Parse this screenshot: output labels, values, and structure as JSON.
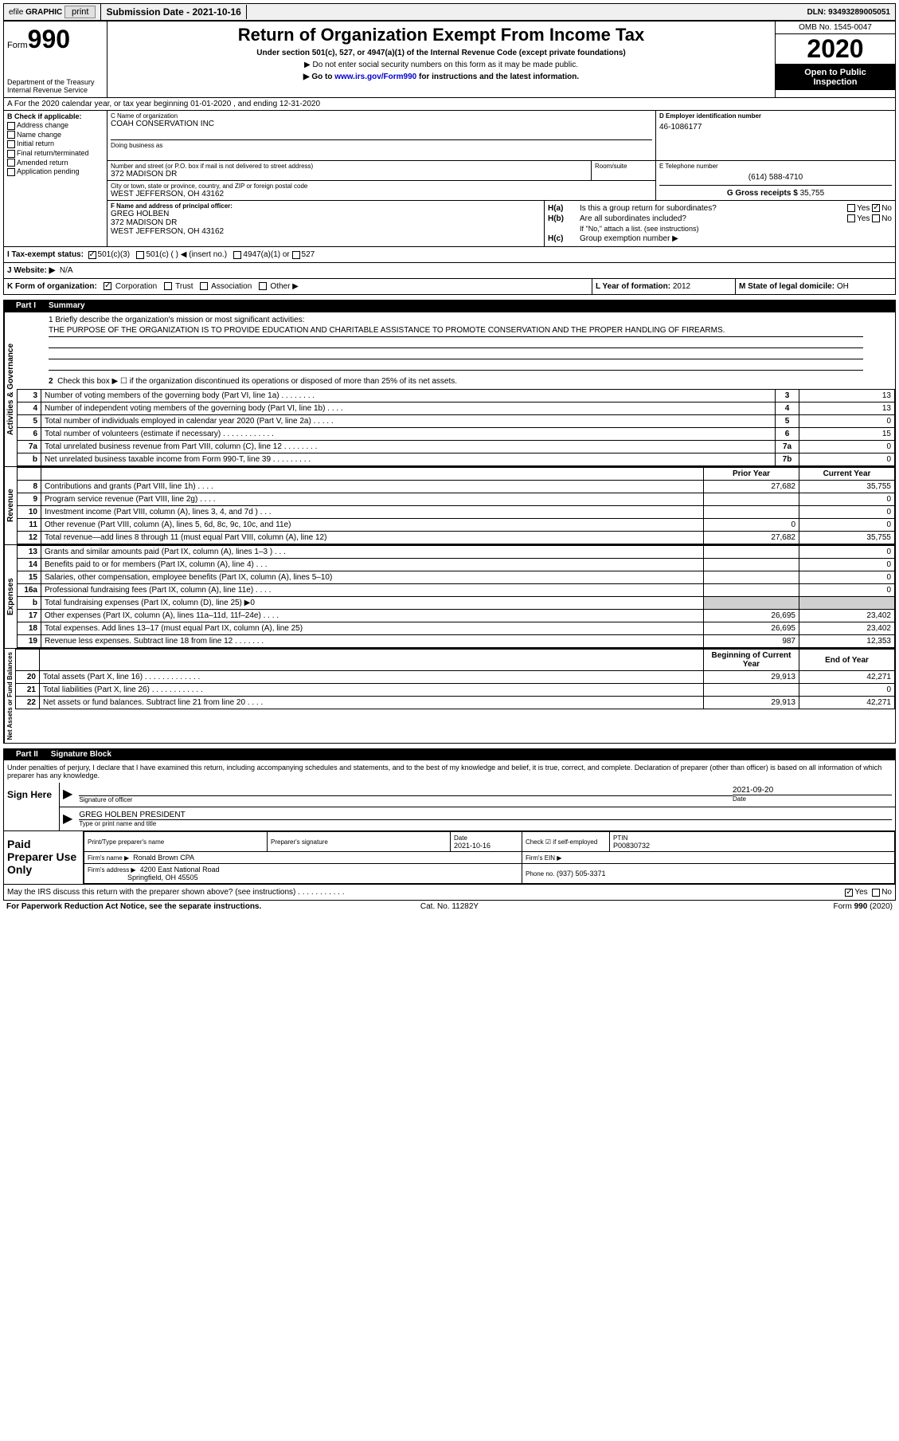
{
  "topbar": {
    "efile_prefix": "efile",
    "efile_graphic": "GRAPHIC",
    "print": "print",
    "submission_label": "Submission Date - 2021-10-16",
    "dln": "DLN: 93493289005051"
  },
  "header": {
    "form_word": "Form",
    "form_num": "990",
    "dept1": "Department of the Treasury",
    "dept2": "Internal Revenue Service",
    "title": "Return of Organization Exempt From Income Tax",
    "sub1": "Under section 501(c), 527, or 4947(a)(1) of the Internal Revenue Code (except private foundations)",
    "sub2": "▶ Do not enter social security numbers on this form as it may be made public.",
    "sub3_pre": "▶ Go to ",
    "sub3_link": "www.irs.gov/Form990",
    "sub3_post": " for instructions and the latest information.",
    "omb": "OMB No. 1545-0047",
    "year": "2020",
    "open1": "Open to Public",
    "open2": "Inspection"
  },
  "row_a": "A For the 2020 calendar year, or tax year beginning 01-01-2020    , and ending 12-31-2020",
  "col_b": {
    "header": "B Check if applicable:",
    "opts": [
      "Address change",
      "Name change",
      "Initial return",
      "Final return/terminated",
      "Amended return",
      "Application pending"
    ]
  },
  "name_box": {
    "c_label": "C Name of organization",
    "c_val": "COAH CONSERVATION INC",
    "dba_label": "Doing business as",
    "dba_val": "",
    "d_label": "D Employer identification number",
    "d_val": "46-1086177"
  },
  "addr": {
    "street_label": "Number and street (or P.O. box if mail is not delivered to street address)",
    "street_val": "372 MADISON DR",
    "room_label": "Room/suite",
    "city_label": "City or town, state or province, country, and ZIP or foreign postal code",
    "city_val": "WEST JEFFERSON, OH  43162",
    "e_label": "E Telephone number",
    "e_val": "(614) 588-4710",
    "g_label": "G Gross receipts $",
    "g_val": "35,755"
  },
  "f_box": {
    "label": "F  Name and address of principal officer:",
    "name": "GREG HOLBEN",
    "addr1": "372 MADISON DR",
    "addr2": "WEST JEFFERSON, OH  43162"
  },
  "h_box": {
    "ha_label": "H(a)",
    "ha_text": "Is this a group return for subordinates?",
    "hb_label": "H(b)",
    "hb_text": "Are all subordinates included?",
    "hb_note": "If \"No,\" attach a list. (see instructions)",
    "hc_label": "H(c)",
    "hc_text": "Group exemption number ▶",
    "yes": "Yes",
    "no": "No"
  },
  "tax_exempt": {
    "i_label": "I  Tax-exempt status:",
    "opt1": "501(c)(3)",
    "opt2": "501(c) (  ) ◀ (insert no.)",
    "opt3": "4947(a)(1) or",
    "opt4": "527"
  },
  "website": {
    "j_label": "J  Website: ▶",
    "val": "N/A"
  },
  "kml": {
    "k_label": "K Form of organization:",
    "k_opts": [
      "Corporation",
      "Trust",
      "Association",
      "Other ▶"
    ],
    "l_label": "L Year of formation:",
    "l_val": "2012",
    "m_label": "M State of legal domicile:",
    "m_val": "OH"
  },
  "part1": {
    "header_num": "Part I",
    "header_title": "Summary",
    "q1_label": "1  Briefly describe the organization's mission or most significant activities:",
    "q1_val": "THE PURPOSE OF THE ORGANIZATION IS TO PROVIDE EDUCATION AND CHARITABLE ASSISTANCE TO PROMOTE CONSERVATION AND THE PROPER HANDLING OF FIREARMS.",
    "q2": "Check this box ▶ ☐  if the organization discontinued its operations or disposed of more than 25% of its net assets.",
    "vlabel_gov": "Activities & Governance",
    "vlabel_rev": "Revenue",
    "vlabel_exp": "Expenses",
    "vlabel_net": "Net Assets or Fund Balances",
    "prior_year": "Prior Year",
    "current_year": "Current Year",
    "beg_year": "Beginning of Current Year",
    "end_year": "End of Year",
    "rows_gov": [
      {
        "n": "3",
        "d": "Number of voting members of the governing body (Part VI, line 1a)  .   .   .   .   .   .   .   .",
        "b": "3",
        "v": "13"
      },
      {
        "n": "4",
        "d": "Number of independent voting members of the governing body (Part VI, line 1b)  .   .   .   .",
        "b": "4",
        "v": "13"
      },
      {
        "n": "5",
        "d": "Total number of individuals employed in calendar year 2020 (Part V, line 2a)  .   .   .   .   .",
        "b": "5",
        "v": "0"
      },
      {
        "n": "6",
        "d": "Total number of volunteers (estimate if necessary)    .    .    .    .    .    .    .    .    .    .    .    .",
        "b": "6",
        "v": "15"
      },
      {
        "n": "7a",
        "d": "Total unrelated business revenue from Part VIII, column (C), line 12  .   .   .   .   .   .   .   .",
        "b": "7a",
        "v": "0"
      },
      {
        "n": "b",
        "d": "Net unrelated business taxable income from Form 990-T, line 39   .   .   .   .   .   .   .   .   .",
        "b": "7b",
        "v": "0"
      }
    ],
    "rows_rev": [
      {
        "n": "8",
        "d": "Contributions and grants (Part VIII, line 1h)   .   .   .   .",
        "p": "27,682",
        "c": "35,755"
      },
      {
        "n": "9",
        "d": "Program service revenue (Part VIII, line 2g)   .   .   .   .",
        "p": "",
        "c": "0"
      },
      {
        "n": "10",
        "d": "Investment income (Part VIII, column (A), lines 3, 4, and 7d )   .   .   .",
        "p": "",
        "c": "0"
      },
      {
        "n": "11",
        "d": "Other revenue (Part VIII, column (A), lines 5, 6d, 8c, 9c, 10c, and 11e)",
        "p": "0",
        "c": "0"
      },
      {
        "n": "12",
        "d": "Total revenue—add lines 8 through 11 (must equal Part VIII, column (A), line 12)",
        "p": "27,682",
        "c": "35,755"
      }
    ],
    "rows_exp": [
      {
        "n": "13",
        "d": "Grants and similar amounts paid (Part IX, column (A), lines 1–3 )  .   .   .",
        "p": "",
        "c": "0"
      },
      {
        "n": "14",
        "d": "Benefits paid to or for members (Part IX, column (A), line 4)   .   .   .",
        "p": "",
        "c": "0"
      },
      {
        "n": "15",
        "d": "Salaries, other compensation, employee benefits (Part IX, column (A), lines 5–10)",
        "p": "",
        "c": "0"
      },
      {
        "n": "16a",
        "d": "Professional fundraising fees (Part IX, column (A), line 11e)   .   .   .   .",
        "p": "",
        "c": "0"
      },
      {
        "n": "b",
        "d": "Total fundraising expenses (Part IX, column (D), line 25) ▶0",
        "p": "grey",
        "c": "grey"
      },
      {
        "n": "17",
        "d": "Other expenses (Part IX, column (A), lines 11a–11d, 11f–24e)   .   .   .   .",
        "p": "26,695",
        "c": "23,402"
      },
      {
        "n": "18",
        "d": "Total expenses. Add lines 13–17 (must equal Part IX, column (A), line 25)",
        "p": "26,695",
        "c": "23,402"
      },
      {
        "n": "19",
        "d": "Revenue less expenses. Subtract line 18 from line 12  .   .   .   .   .   .   .",
        "p": "987",
        "c": "12,353"
      }
    ],
    "rows_net": [
      {
        "n": "20",
        "d": "Total assets (Part X, line 16)  .   .   .   .   .   .   .   .   .   .   .   .   .",
        "p": "29,913",
        "c": "42,271"
      },
      {
        "n": "21",
        "d": "Total liabilities (Part X, line 26)  .   .   .   .   .   .   .   .   .   .   .   .",
        "p": "",
        "c": "0"
      },
      {
        "n": "22",
        "d": "Net assets or fund balances. Subtract line 21 from line 20   .   .   .   .",
        "p": "29,913",
        "c": "42,271"
      }
    ]
  },
  "part2": {
    "header_num": "Part II",
    "header_title": "Signature Block",
    "decl": "Under penalties of perjury, I declare that I have examined this return, including accompanying schedules and statements, and to the best of my knowledge and belief, it is true, correct, and complete. Declaration of preparer (other than officer) is based on all information of which preparer has any knowledge.",
    "sign_here": "Sign Here",
    "sig_officer_label": "Signature of officer",
    "sig_date_label": "Date",
    "sig_date_val": "2021-09-20",
    "sig_name": "GREG HOLBEN  PRESIDENT",
    "sig_name_label": "Type or print name and title"
  },
  "paid": {
    "title": "Paid Preparer Use Only",
    "h1": "Print/Type preparer's name",
    "h2": "Preparer's signature",
    "h3": "Date",
    "h3v": "2021-10-16",
    "h4": "Check ☑ if self-employed",
    "h5": "PTIN",
    "h5v": "P00830732",
    "firm_name_label": "Firm's name   ▶",
    "firm_name": "Ronald Brown CPA",
    "firm_ein_label": "Firm's EIN ▶",
    "firm_addr_label": "Firm's address ▶",
    "firm_addr1": "4200 East National Road",
    "firm_addr2": "Springfield, OH  45505",
    "phone_label": "Phone no.",
    "phone_val": "(937) 505-3371"
  },
  "bottom": {
    "q": "May the IRS discuss this return with the preparer shown above? (see instructions)   .   .   .   .   .   .   .   .   .   .   .",
    "yes": "Yes",
    "no": "No"
  },
  "footer": {
    "left": "For Paperwork Reduction Act Notice, see the separate instructions.",
    "mid": "Cat. No. 11282Y",
    "right": "Form 990 (2020)"
  }
}
